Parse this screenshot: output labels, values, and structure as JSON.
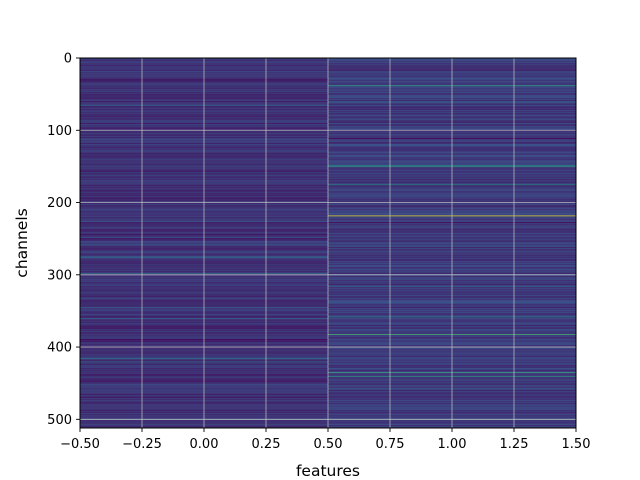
{
  "chart_data": {
    "type": "heatmap",
    "title": "",
    "xlabel": "features",
    "ylabel": "channels",
    "colormap": "viridis",
    "xlim": [
      -0.5,
      1.5
    ],
    "ylim": [
      512,
      0
    ],
    "y_inverted": true,
    "grid": true,
    "grid_color": "#c8c8c8",
    "x_ticks": [
      -0.5,
      -0.25,
      0.0,
      0.25,
      0.5,
      0.75,
      1.0,
      1.25,
      1.5
    ],
    "x_tick_labels": [
      "−0.50",
      "−0.25",
      "0.00",
      "0.25",
      "0.50",
      "0.75",
      "1.00",
      "1.25",
      "1.50"
    ],
    "y_ticks": [
      0,
      100,
      200,
      300,
      400,
      500
    ],
    "y_tick_labels": [
      "0",
      "100",
      "200",
      "300",
      "400",
      "500"
    ],
    "columns": [
      {
        "feature": 0,
        "base_value": 0.15,
        "highlights": [
          {
            "channel": 65,
            "value": 0.35
          },
          {
            "channel": 90,
            "value": 0.05
          },
          {
            "channel": 160,
            "value": 0.05
          },
          {
            "channel": 225,
            "value": 0.32
          },
          {
            "channel": 258,
            "value": 0.3
          },
          {
            "channel": 275,
            "value": 0.4
          },
          {
            "channel": 345,
            "value": 0.3
          },
          {
            "channel": 360,
            "value": 0.32
          },
          {
            "channel": 415,
            "value": 0.42
          },
          {
            "channel": 420,
            "value": 0.4
          },
          {
            "channel": 448,
            "value": 0.05
          },
          {
            "channel": 465,
            "value": 0.05
          },
          {
            "channel": 500,
            "value": 0.35
          }
        ]
      },
      {
        "feature": 1,
        "base_value": 0.18,
        "highlights": [
          {
            "channel": 38,
            "value": 0.55
          },
          {
            "channel": 60,
            "value": 0.32
          },
          {
            "channel": 148,
            "value": 0.5
          },
          {
            "channel": 150,
            "value": 0.55
          },
          {
            "channel": 175,
            "value": 0.5
          },
          {
            "channel": 218,
            "value": 0.95
          },
          {
            "channel": 260,
            "value": 0.3
          },
          {
            "channel": 315,
            "value": 0.3
          },
          {
            "channel": 345,
            "value": 0.05
          },
          {
            "channel": 358,
            "value": 0.42
          },
          {
            "channel": 382,
            "value": 0.65
          },
          {
            "channel": 435,
            "value": 0.6
          },
          {
            "channel": 440,
            "value": 0.55
          },
          {
            "channel": 500,
            "value": 0.35
          }
        ]
      }
    ]
  }
}
